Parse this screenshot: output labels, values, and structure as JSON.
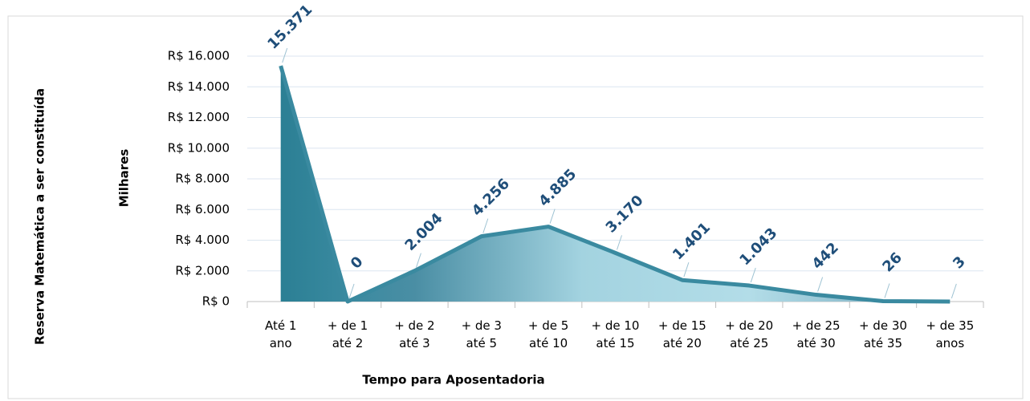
{
  "chart_data": {
    "type": "area",
    "y_label": "Reserva Matemática a ser constituída",
    "y_unit_label": "Milhares",
    "x_label": "Tempo para Aposentadoria",
    "categories": [
      "Até 1 ano",
      "+ de 1 até 2",
      "+ de 2 até 3",
      "+ de 3 até 5",
      "+ de 5 até 10",
      "+ de 10 até 15",
      "+ de 15 até 20",
      "+ de 20 até 25",
      "+ de 25 até 30",
      "+ de 30 até 35",
      "+ de 35 anos"
    ],
    "values": [
      15371,
      0,
      2004,
      4256,
      4885,
      3170,
      1401,
      1043,
      442,
      26,
      3
    ],
    "value_labels": [
      "15.371",
      "0",
      "2.004",
      "4.256",
      "4.885",
      "3.170",
      "1.401",
      "1.043",
      "442",
      "26",
      "3"
    ],
    "color": "#3a8aa0",
    "ylim": [
      0,
      16000
    ],
    "yticks": [
      {
        "value": 0,
        "label": "R$ 0"
      },
      {
        "value": 2000,
        "label": "R$ 2.000"
      },
      {
        "value": 4000,
        "label": "R$ 4.000"
      },
      {
        "value": 6000,
        "label": "R$ 6.000"
      },
      {
        "value": 8000,
        "label": "R$ 8.000"
      },
      {
        "value": 10000,
        "label": "R$ 10.000"
      },
      {
        "value": 12000,
        "label": "R$ 12.000"
      },
      {
        "value": 14000,
        "label": "R$ 14.000"
      },
      {
        "value": 16000,
        "label": "R$ 16.000"
      }
    ],
    "grid": true
  }
}
